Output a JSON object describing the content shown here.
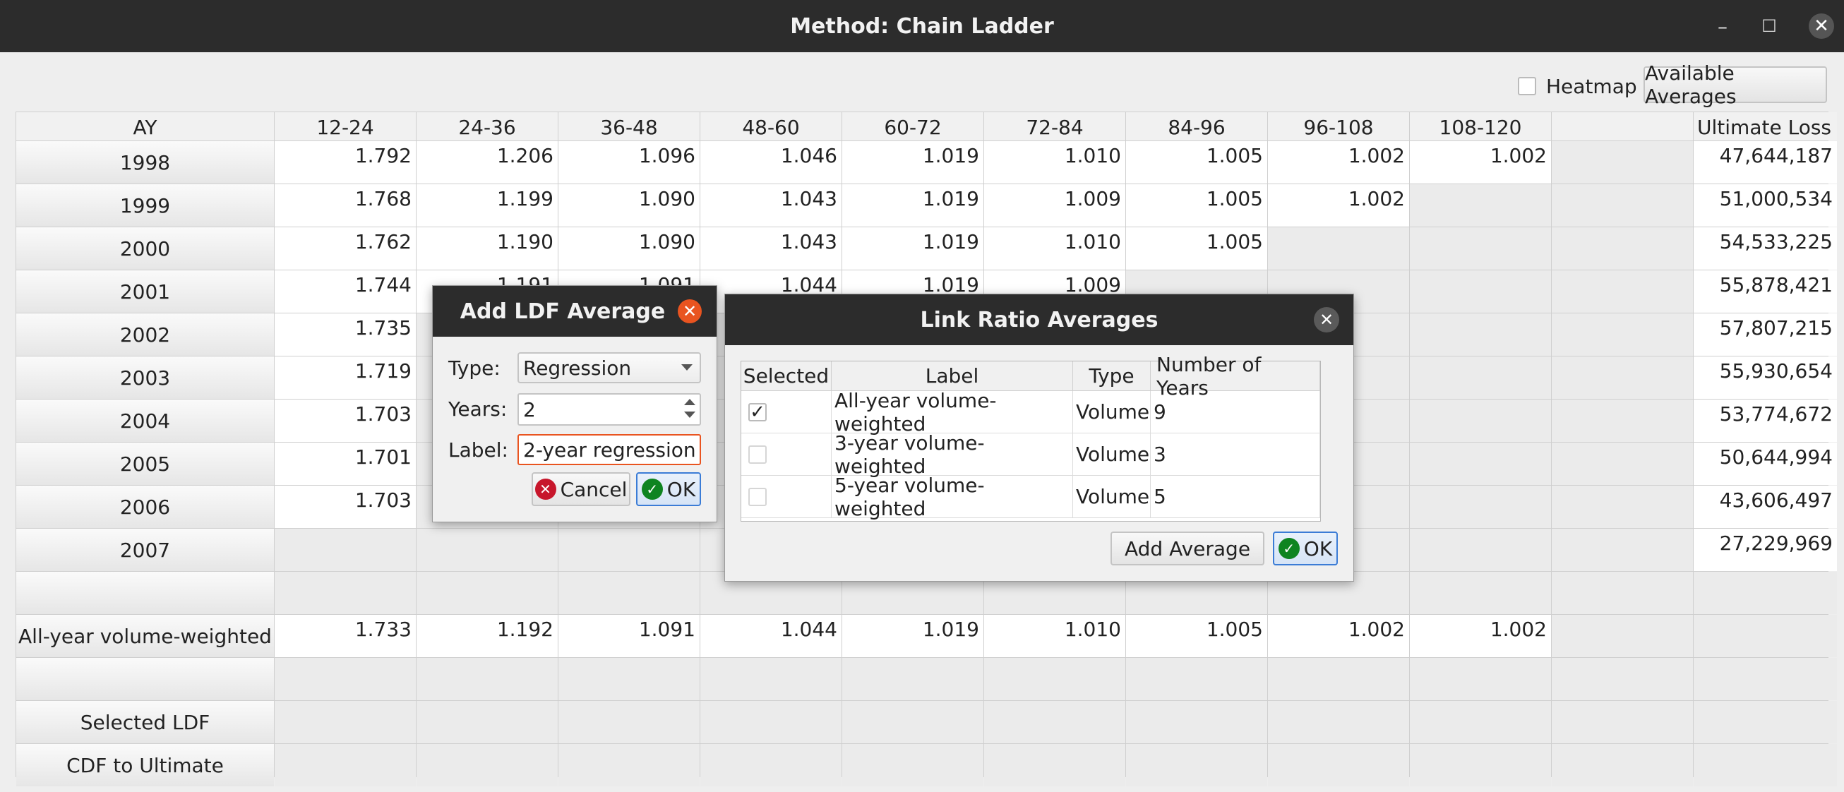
{
  "window": {
    "title": "Method: Chain Ladder"
  },
  "toolbar": {
    "heatmap_label": "Heatmap",
    "heatmap_checked": false,
    "available_averages_label": "Available Averages"
  },
  "table": {
    "headers": [
      "AY",
      "12-24",
      "24-36",
      "36-48",
      "48-60",
      "60-72",
      "72-84",
      "84-96",
      "96-108",
      "108-120",
      "",
      "Ultimate Loss"
    ],
    "rows": [
      {
        "label": "1998",
        "values": [
          "1.792",
          "1.206",
          "1.096",
          "1.046",
          "1.019",
          "1.010",
          "1.005",
          "1.002",
          "1.002",
          ""
        ],
        "ultimate": "47,644,187"
      },
      {
        "label": "1999",
        "values": [
          "1.768",
          "1.199",
          "1.090",
          "1.043",
          "1.019",
          "1.009",
          "1.005",
          "1.002",
          "",
          ""
        ],
        "ultimate": "51,000,534"
      },
      {
        "label": "2000",
        "values": [
          "1.762",
          "1.190",
          "1.090",
          "1.043",
          "1.019",
          "1.010",
          "1.005",
          "",
          "",
          ""
        ],
        "ultimate": "54,533,225"
      },
      {
        "label": "2001",
        "values": [
          "1.744",
          "1.191",
          "1.091",
          "1.044",
          "1.019",
          "1.009",
          "",
          "",
          "",
          ""
        ],
        "ultimate": "55,878,421"
      },
      {
        "label": "2002",
        "values": [
          "1.735",
          "",
          "",
          "",
          "",
          "",
          "",
          "",
          "",
          ""
        ],
        "ultimate": "57,807,215"
      },
      {
        "label": "2003",
        "values": [
          "1.719",
          "",
          "",
          "",
          "",
          "",
          "",
          "",
          "",
          ""
        ],
        "ultimate": "55,930,654"
      },
      {
        "label": "2004",
        "values": [
          "1.703",
          "",
          "",
          "",
          "",
          "",
          "",
          "",
          "",
          ""
        ],
        "ultimate": "53,774,672"
      },
      {
        "label": "2005",
        "values": [
          "1.701",
          "",
          "",
          "",
          "",
          "",
          "",
          "",
          "",
          ""
        ],
        "ultimate": "50,644,994"
      },
      {
        "label": "2006",
        "values": [
          "1.703",
          "",
          "",
          "",
          "",
          "",
          "",
          "",
          "",
          ""
        ],
        "ultimate": "43,606,497"
      },
      {
        "label": "2007",
        "values": [
          "",
          "",
          "",
          "",
          "",
          "",
          "",
          "",
          "",
          ""
        ],
        "ultimate": "27,229,969"
      },
      {
        "label": "",
        "values": [
          "",
          "",
          "",
          "",
          "",
          "",
          "",
          "",
          "",
          ""
        ],
        "ultimate": ""
      },
      {
        "label": "All-year volume-weighted",
        "values": [
          "1.733",
          "1.192",
          "1.091",
          "1.044",
          "1.019",
          "1.010",
          "1.005",
          "1.002",
          "1.002",
          ""
        ],
        "ultimate": ""
      },
      {
        "label": "",
        "values": [
          "",
          "",
          "",
          "",
          "",
          "",
          "",
          "",
          "",
          ""
        ],
        "ultimate": ""
      },
      {
        "label": "Selected LDF",
        "values": [
          "",
          "",
          "",
          "",
          "",
          "",
          "",
          "",
          "",
          ""
        ],
        "ultimate": ""
      },
      {
        "label": "CDF to Ultimate",
        "values": [
          "",
          "",
          "",
          "",
          "",
          "",
          "",
          "",
          "",
          ""
        ],
        "ultimate": ""
      }
    ]
  },
  "add_ldf_dialog": {
    "title": "Add LDF Average",
    "type_label": "Type:",
    "type_value": "Regression",
    "years_label": "Years:",
    "years_value": "2",
    "label_label": "Label:",
    "label_value": "2-year regression",
    "cancel_label": "Cancel",
    "ok_label": "OK"
  },
  "link_ratio_dialog": {
    "title": "Link Ratio Averages",
    "columns": [
      "Selected",
      "Label",
      "Type",
      "Number of Years"
    ],
    "rows": [
      {
        "selected": true,
        "label": "All-year volume-weighted",
        "type": "Volume",
        "years": "9"
      },
      {
        "selected": false,
        "label": "3-year volume-weighted",
        "type": "Volume",
        "years": "3"
      },
      {
        "selected": false,
        "label": "5-year volume-weighted",
        "type": "Volume",
        "years": "5"
      }
    ],
    "add_average_label": "Add Average",
    "ok_label": "OK"
  },
  "colors": {
    "titlebar": "#2c2c2c",
    "accent": "#e95420",
    "cancel_icon": "#c7162b",
    "ok_icon": "#0e8420"
  }
}
